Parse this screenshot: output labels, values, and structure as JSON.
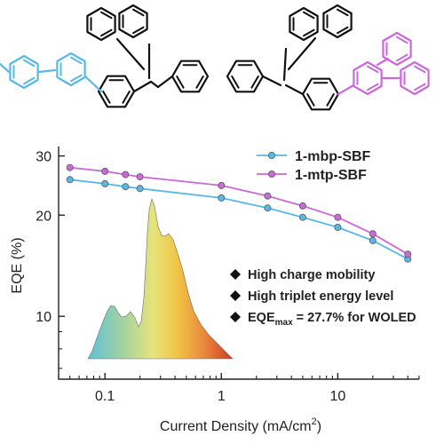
{
  "chart_data": {
    "type": "line",
    "xlabel": "Current Density (mA/cm",
    "xlabel_sup": "2",
    "xlabel_end": ")",
    "ylabel": "EQE (%)",
    "x_scale": "log",
    "y_scale": "log",
    "xlim": [
      0.04,
      50
    ],
    "ylim": [
      6.5,
      32
    ],
    "x_ticks": [
      {
        "value": 0.1,
        "label": "0.1"
      },
      {
        "value": 1,
        "label": "1"
      },
      {
        "value": 10,
        "label": "10"
      }
    ],
    "y_ticks": [
      {
        "value": 10,
        "label": "10"
      },
      {
        "value": 20,
        "label": "20"
      },
      {
        "value": 30,
        "label": "30"
      }
    ],
    "legend_position": "top-right",
    "grid": false,
    "series": [
      {
        "name": "1-mbp-SBF",
        "color": "#58b8e6",
        "x": [
          0.05,
          0.1,
          0.15,
          0.2,
          1,
          2.5,
          5,
          10,
          20,
          40
        ],
        "y": [
          25.5,
          24.8,
          24.3,
          24.0,
          22.5,
          21.0,
          19.7,
          18.4,
          16.8,
          14.8
        ]
      },
      {
        "name": "1-mtp-SBF",
        "color": "#c96ad6",
        "x": [
          0.05,
          0.1,
          0.15,
          0.2,
          1,
          2.5,
          5,
          10,
          20,
          40
        ],
        "y": [
          27.7,
          27.0,
          26.4,
          26.0,
          24.5,
          22.8,
          21.3,
          19.7,
          17.6,
          15.3
        ]
      }
    ],
    "annotations": [
      {
        "text": "High charge mobility"
      },
      {
        "text": "High triplet energy level"
      },
      {
        "text": "EQE",
        "sub": "max",
        "rest": " = 27.7% for WOLED"
      }
    ]
  },
  "colors": {
    "mbp": "#58b8e6",
    "mtp": "#c96ad6",
    "spectrum_stops": [
      "#5fbfd8",
      "#9fd0a0",
      "#e3e47a",
      "#f0c040",
      "#e88a3c",
      "#d23a2c"
    ]
  },
  "molecules": [
    {
      "name": "1-mbp-SBF",
      "color": "#58b8e6"
    },
    {
      "name": "1-mtp-SBF",
      "color": "#c96ad6"
    }
  ]
}
